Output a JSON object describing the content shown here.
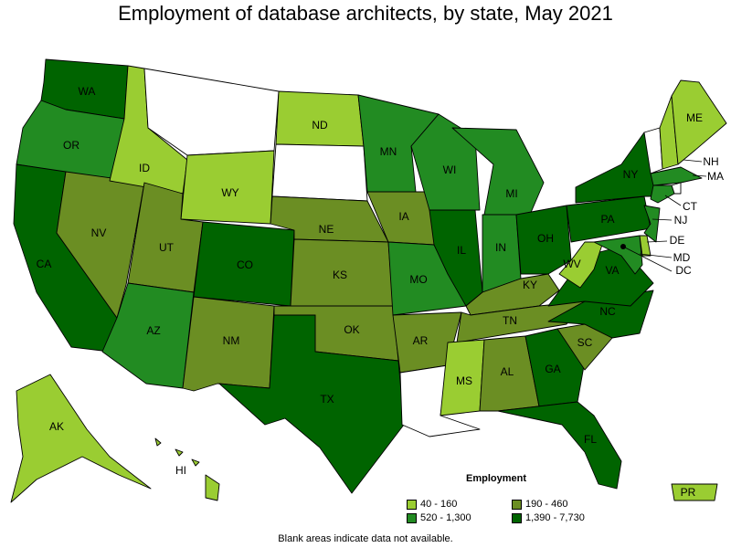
{
  "title": "Employment of database architects, by state, May 2021",
  "legend": {
    "title": "Employment",
    "bins": [
      {
        "label": "40 - 160",
        "color": "#9acd32"
      },
      {
        "label": "520 - 1,300",
        "color": "#228b22"
      },
      {
        "label": "190 - 460",
        "color": "#6b8e23"
      },
      {
        "label": "1,390 - 7,730",
        "color": "#006400"
      }
    ]
  },
  "note": "Blank areas indicate data not available.",
  "states": {
    "WA": "1,390 - 7,730",
    "OR": "520 - 1,300",
    "CA": "1,390 - 7,730",
    "NV": "190 - 460",
    "ID": "40 - 160",
    "MT": "none",
    "WY": "40 - 160",
    "UT": "190 - 460",
    "AZ": "520 - 1,300",
    "CO": "1,390 - 7,730",
    "NM": "190 - 460",
    "ND": "40 - 160",
    "SD": "none",
    "NE": "190 - 460",
    "KS": "190 - 460",
    "OK": "190 - 460",
    "TX": "1,390 - 7,730",
    "MN": "520 - 1,300",
    "IA": "190 - 460",
    "MO": "520 - 1,300",
    "AR": "190 - 460",
    "LA": "none",
    "WI": "520 - 1,300",
    "IL": "1,390 - 7,730",
    "MI": "520 - 1,300",
    "IN": "520 - 1,300",
    "OH": "1,390 - 7,730",
    "KY": "190 - 460",
    "TN": "190 - 460",
    "MS": "40 - 160",
    "AL": "190 - 460",
    "GA": "1,390 - 7,730",
    "FL": "1,390 - 7,730",
    "SC": "190 - 460",
    "NC": "1,390 - 7,730",
    "VA": "1,390 - 7,730",
    "WV": "40 - 160",
    "PA": "1,390 - 7,730",
    "NY": "1,390 - 7,730",
    "VT": "none",
    "NH": "40 - 160",
    "ME": "40 - 160",
    "MA": "520 - 1,300",
    "RI": "none",
    "CT": "520 - 1,300",
    "NJ": "520 - 1,300",
    "DE": "40 - 160",
    "MD": "520 - 1,300",
    "DC": "1,390 - 7,730",
    "AK": "40 - 160",
    "HI": "40 - 160",
    "PR": "40 - 160"
  },
  "labels": {
    "WA": "WA",
    "OR": "OR",
    "CA": "CA",
    "NV": "NV",
    "ID": "ID",
    "WY": "WY",
    "UT": "UT",
    "AZ": "AZ",
    "CO": "CO",
    "NM": "NM",
    "ND": "ND",
    "NE": "NE",
    "KS": "KS",
    "OK": "OK",
    "TX": "TX",
    "MN": "MN",
    "IA": "IA",
    "MO": "MO",
    "AR": "AR",
    "WI": "WI",
    "IL": "IL",
    "MI": "MI",
    "IN": "IN",
    "OH": "OH",
    "KY": "KY",
    "TN": "TN",
    "MS": "MS",
    "AL": "AL",
    "GA": "GA",
    "FL": "FL",
    "SC": "SC",
    "NC": "NC",
    "VA": "VA",
    "WV": "WV",
    "PA": "PA",
    "NY": "NY",
    "ME": "ME",
    "NH": "NH",
    "MA": "MA",
    "CT": "CT",
    "NJ": "NJ",
    "DE": "DE",
    "MD": "MD",
    "DC": "DC",
    "AK": "AK",
    "HI": "HI",
    "PR": "PR"
  }
}
